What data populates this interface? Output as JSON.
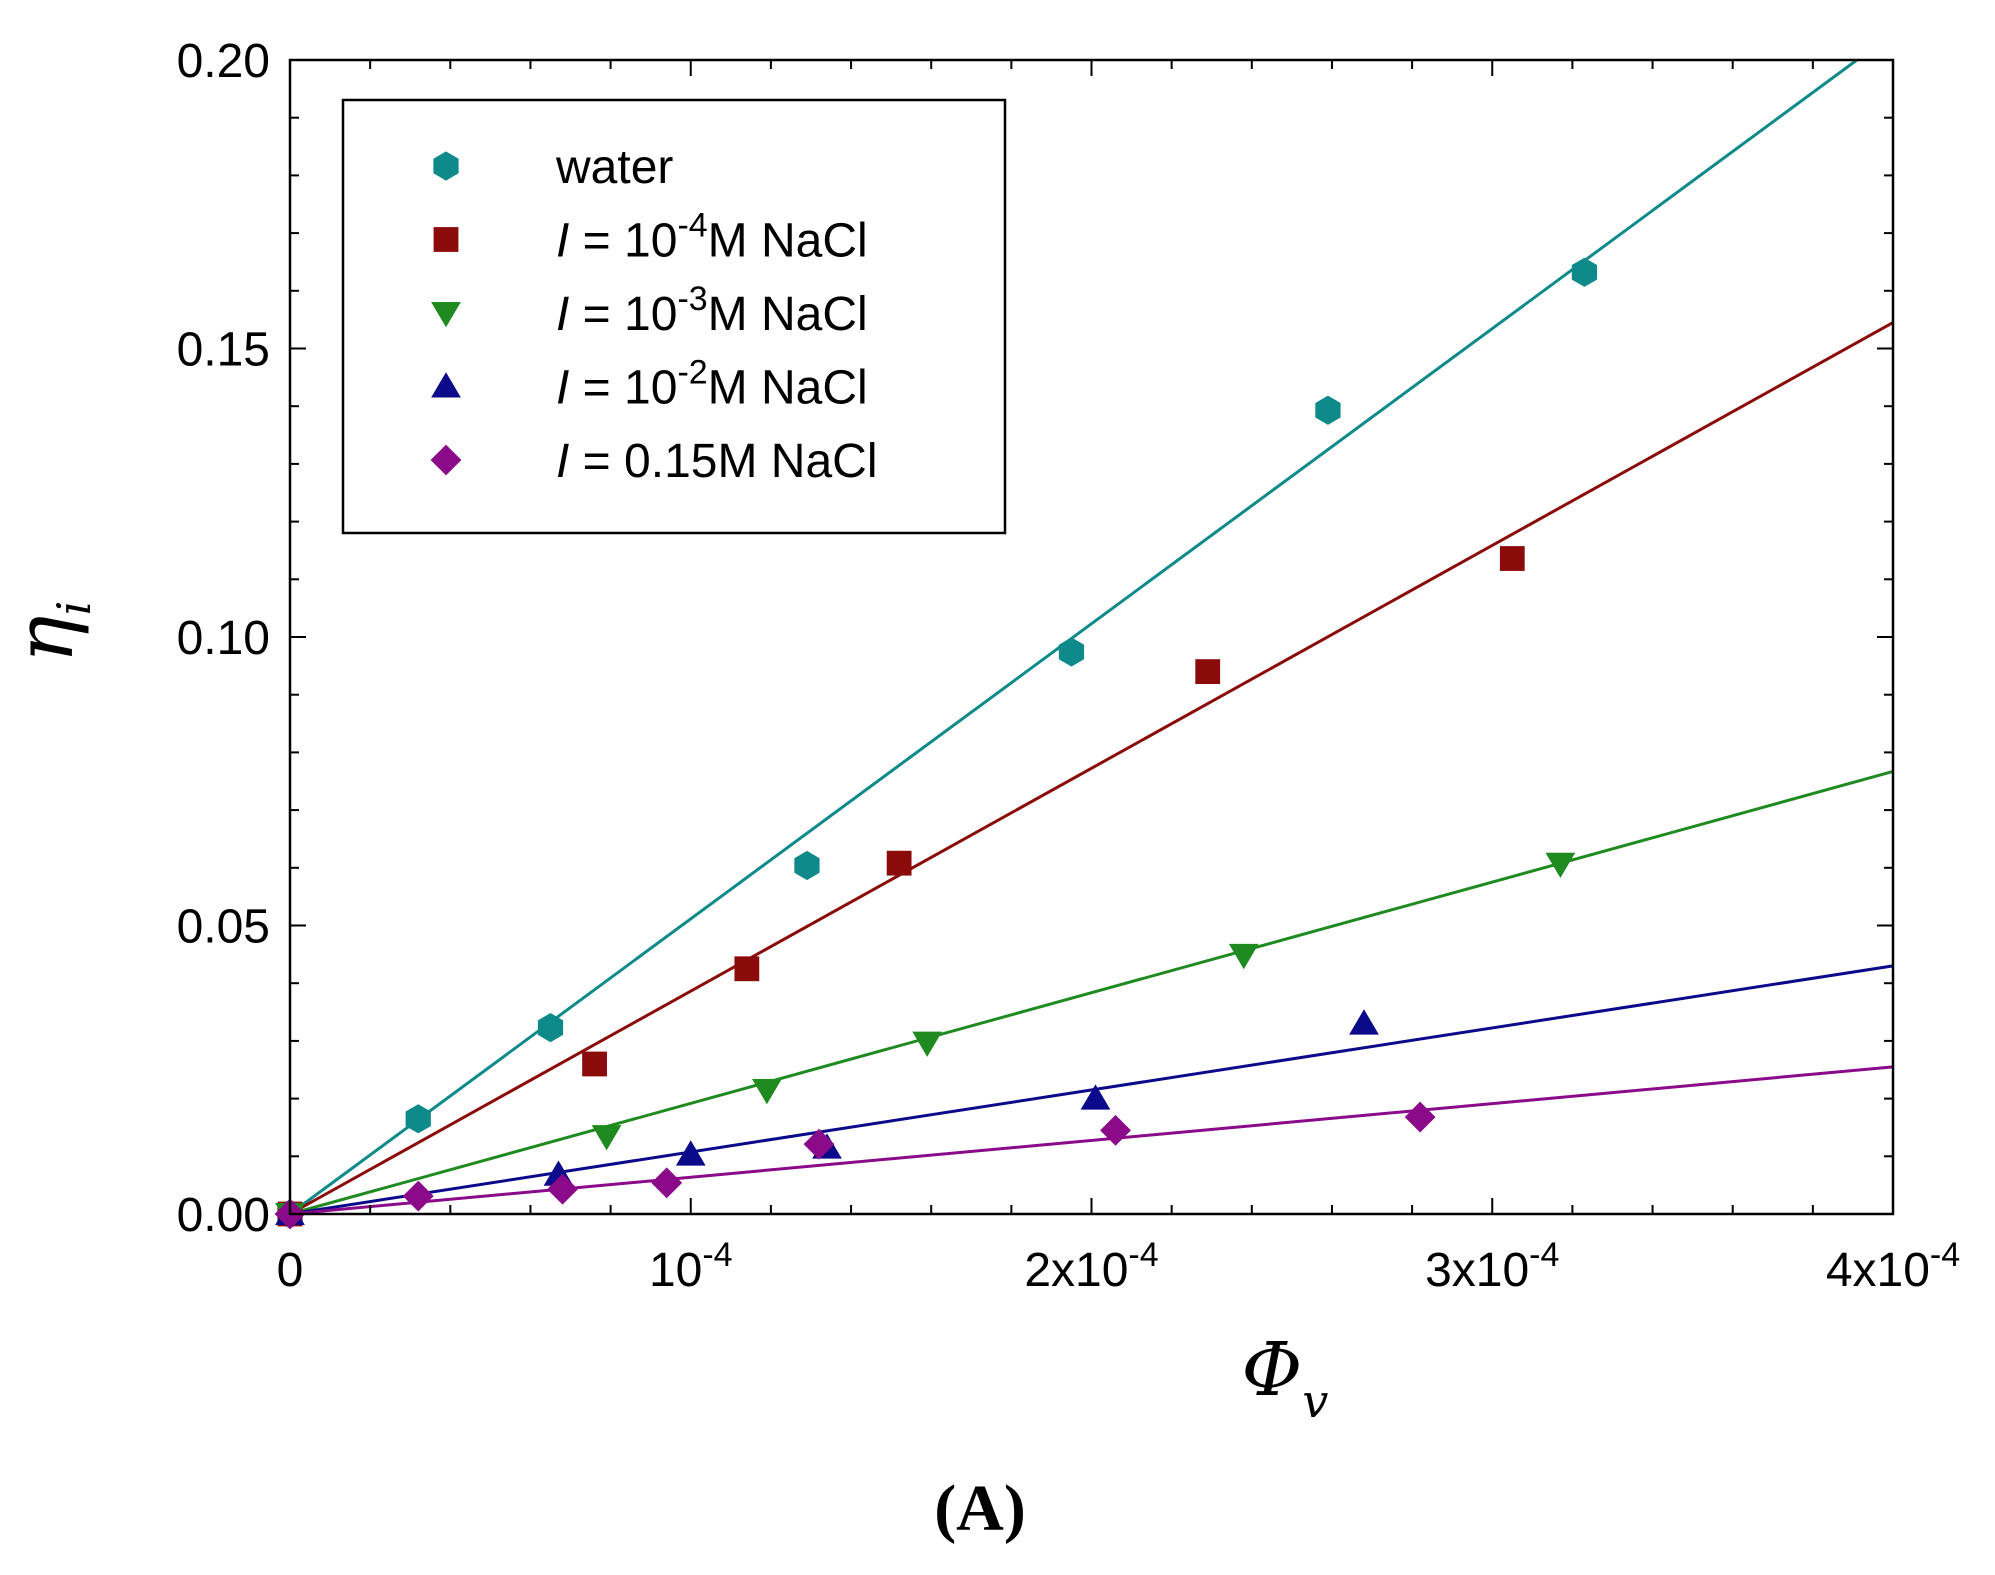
{
  "chart_data": {
    "type": "scatter",
    "panel_label": "(A)",
    "xlabel": {
      "main": "Φ",
      "sub": "v"
    },
    "ylabel": {
      "main": "η",
      "sub": "i"
    },
    "xlim": [
      0,
      0.0004
    ],
    "ylim": [
      0,
      0.2
    ],
    "x_ticks": [
      {
        "value": 0,
        "label": "0",
        "exp": ""
      },
      {
        "value": 0.0001,
        "label": "10",
        "exp": "-4"
      },
      {
        "value": 0.0002,
        "label": "2x10",
        "exp": "-4"
      },
      {
        "value": 0.0003,
        "label": "3x10",
        "exp": "-4"
      },
      {
        "value": 0.0004,
        "label": "4x10",
        "exp": "-4"
      }
    ],
    "y_ticks": [
      {
        "value": 0,
        "label": "0.00"
      },
      {
        "value": 0.05,
        "label": "0.05"
      },
      {
        "value": 0.1,
        "label": "0.10"
      },
      {
        "value": 0.15,
        "label": "0.15"
      },
      {
        "value": 0.2,
        "label": "0.20"
      }
    ],
    "legend_position": "top-left",
    "series": [
      {
        "name": "water",
        "legend": {
          "italic": "",
          "pre": "water",
          "exp": "",
          "post": ""
        },
        "color": "#0f8a8a",
        "marker": "hexagon",
        "x": [
          0,
          3.2e-05,
          6.5e-05,
          0.000129,
          0.000195,
          0.000259,
          0.000323
        ],
        "y": [
          0,
          0.0165,
          0.0323,
          0.0604,
          0.0974,
          0.1393,
          0.1632
        ],
        "fit": {
          "x": [
            0,
            0.000391
          ],
          "y": [
            0,
            0.2
          ]
        }
      },
      {
        "name": "I = 10^-4 M NaCl",
        "legend": {
          "italic": "I",
          "pre": " = 10",
          "exp": "-4",
          "post": "M NaCl"
        },
        "color": "#8b0a0a",
        "marker": "square",
        "x": [
          0,
          7.6e-05,
          0.000114,
          0.000152,
          0.000229,
          0.000305
        ],
        "y": [
          0,
          0.026,
          0.0425,
          0.0608,
          0.094,
          0.1136
        ],
        "fit": {
          "x": [
            0,
            0.0004
          ],
          "y": [
            0,
            0.1545
          ]
        }
      },
      {
        "name": "I = 10^-3 M NaCl",
        "legend": {
          "italic": "I",
          "pre": " = 10",
          "exp": "-3",
          "post": "M NaCl"
        },
        "color": "#1f8a1f",
        "marker": "triangle-down",
        "x": [
          0,
          7.9e-05,
          0.000119,
          0.000159,
          0.000238,
          0.000317
        ],
        "y": [
          0,
          0.0135,
          0.0215,
          0.0297,
          0.0449,
          0.0607
        ],
        "fit": {
          "x": [
            0,
            0.0004
          ],
          "y": [
            0,
            0.0767
          ]
        }
      },
      {
        "name": "I = 10^-2 M NaCl",
        "legend": {
          "italic": "I",
          "pre": " = 10",
          "exp": "-2",
          "post": "M NaCl"
        },
        "color": "#0a0a8a",
        "marker": "triangle-up",
        "x": [
          0,
          6.7e-05,
          0.0001,
          0.000134,
          0.000201,
          0.000268
        ],
        "y": [
          0,
          0.0068,
          0.0103,
          0.0115,
          0.02,
          0.033
        ],
        "fit": {
          "x": [
            0,
            0.0004
          ],
          "y": [
            0,
            0.043
          ]
        }
      },
      {
        "name": "I = 0.15M NaCl",
        "legend": {
          "italic": "I",
          "pre": " = 0.15M NaCl",
          "exp": "",
          "post": ""
        },
        "color": "#8a0a8a",
        "marker": "diamond",
        "x": [
          0,
          3.2e-05,
          6.8e-05,
          9.4e-05,
          0.000132,
          0.000206,
          0.000282
        ],
        "y": [
          0,
          0.0031,
          0.0043,
          0.0054,
          0.0121,
          0.0145,
          0.0168
        ],
        "fit": {
          "x": [
            0,
            0.0004
          ],
          "y": [
            0,
            0.0255
          ]
        }
      }
    ]
  }
}
